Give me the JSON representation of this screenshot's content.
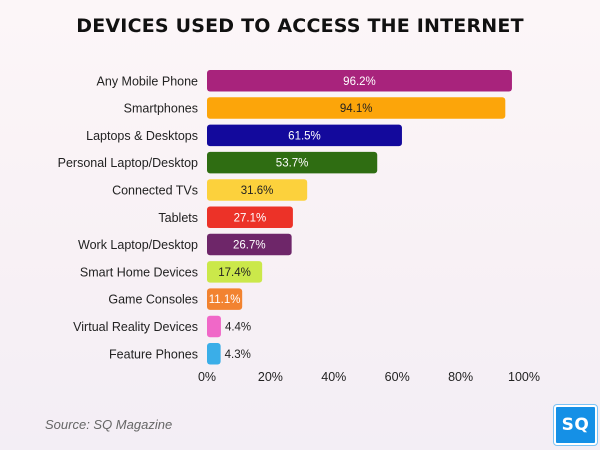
{
  "chart_data": {
    "type": "bar",
    "orientation": "horizontal",
    "title": "DEVICES USED TO ACCESS THE INTERNET",
    "categories": [
      "Any Mobile Phone",
      "Smartphones",
      "Laptops & Desktops",
      "Personal Laptop/Desktop",
      "Connected TVs",
      "Tablets",
      "Work Laptop/Desktop",
      "Smart Home Devices",
      "Game Consoles",
      "Virtual Reality Devices",
      "Feature Phones"
    ],
    "values": [
      96.2,
      94.1,
      61.5,
      53.7,
      31.6,
      27.1,
      26.7,
      17.4,
      11.1,
      4.4,
      4.3
    ],
    "value_labels": [
      "96.2%",
      "94.1%",
      "61.5%",
      "53.7%",
      "31.6%",
      "27.1%",
      "26.7%",
      "17.4%",
      "11.1%",
      "4.4%",
      "4.3%"
    ],
    "colors": [
      "#a8237c",
      "#fca50a",
      "#13099c",
      "#2f6d12",
      "#fcd13c",
      "#ec3228",
      "#6e2669",
      "#cbe84a",
      "#f28330",
      "#f068c8",
      "#3aaee8"
    ],
    "label_colors": [
      "#ffffff",
      "#222222",
      "#ffffff",
      "#ffffff",
      "#222222",
      "#ffffff",
      "#ffffff",
      "#222222",
      "#ffffff",
      "#222222",
      "#222222"
    ],
    "xlim": [
      0,
      100
    ],
    "x_ticks": [
      0,
      20,
      40,
      60,
      80,
      100
    ],
    "x_tick_labels": [
      "0%",
      "20%",
      "40%",
      "60%",
      "80%",
      "100%"
    ],
    "grid": false,
    "legend": "none"
  },
  "source": "Source: SQ Magazine",
  "logo_text": "SQ"
}
